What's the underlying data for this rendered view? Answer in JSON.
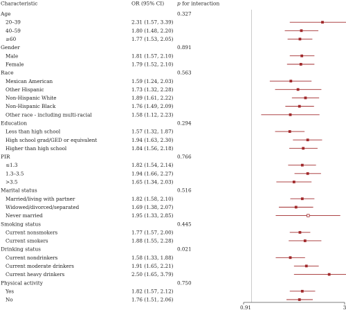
{
  "header": {
    "characteristic": "Characteristic",
    "or_ci": "OR (95% CI)",
    "p_prefix": "p",
    "p_suffix": " for interaction"
  },
  "chart_data": {
    "type": "forest",
    "xlim": [
      0.91,
      3
    ],
    "x_ticks": [
      "0.91",
      "3"
    ],
    "reference_line": 1,
    "marker_color": "#a0282a",
    "line_color": "#a0282a",
    "rows": [
      {
        "kind": "group",
        "label": "Age",
        "p": "0.327"
      },
      {
        "kind": "item",
        "label": "20–39",
        "ci_text": "2.31 (1.57, 3.39)",
        "or": 2.31,
        "lo": 1.57,
        "hi": 3.39
      },
      {
        "kind": "item",
        "label": "40–59",
        "ci_text": "1.80 (1.48, 2.20)",
        "or": 1.8,
        "lo": 1.48,
        "hi": 2.2
      },
      {
        "kind": "item",
        "label": "≥60",
        "ci_text": "1.77 (1.53, 2.05)",
        "or": 1.77,
        "lo": 1.53,
        "hi": 2.05
      },
      {
        "kind": "group",
        "label": "Gender",
        "p": "0.891"
      },
      {
        "kind": "item",
        "label": "Male",
        "ci_text": "1.81 (1.57, 2.10)",
        "or": 1.81,
        "lo": 1.57,
        "hi": 2.1
      },
      {
        "kind": "item",
        "label": "Female",
        "ci_text": "1.79 (1.52, 2.10)",
        "or": 1.79,
        "lo": 1.52,
        "hi": 2.1
      },
      {
        "kind": "group",
        "label": "Race",
        "p": "0.563"
      },
      {
        "kind": "item",
        "label": "Mexican American",
        "ci_text": "1.59 (1.24, 2.03)",
        "or": 1.59,
        "lo": 1.24,
        "hi": 2.03
      },
      {
        "kind": "item",
        "label": "Other Hispanic",
        "ci_text": "1.73 (1.32, 2.28)",
        "or": 1.73,
        "lo": 1.32,
        "hi": 2.28
      },
      {
        "kind": "item",
        "label": "Non-Hispanic White",
        "ci_text": "1.89 (1.61, 2.22)",
        "or": 1.89,
        "lo": 1.61,
        "hi": 2.22
      },
      {
        "kind": "item",
        "label": "Non-Hispanic Black",
        "ci_text": "1.76 (1.49, 2.09)",
        "or": 1.76,
        "lo": 1.49,
        "hi": 2.09
      },
      {
        "kind": "item",
        "label": "Other race - including multi-racial",
        "ci_text": "1.58 (1.12, 2.23)",
        "or": 1.58,
        "lo": 1.12,
        "hi": 2.23
      },
      {
        "kind": "group",
        "label": "Education",
        "p": "0.294"
      },
      {
        "kind": "item",
        "label": "Less than high school",
        "ci_text": "1.57 (1.32, 1.87)",
        "or": 1.57,
        "lo": 1.32,
        "hi": 1.87
      },
      {
        "kind": "item",
        "label": "High school grad/GED or equivalent",
        "ci_text": "1.94 (1.63, 2.30)",
        "or": 1.94,
        "lo": 1.63,
        "hi": 2.3
      },
      {
        "kind": "item",
        "label": "Higher than high school",
        "ci_text": "1.84 (1.56, 2.18)",
        "or": 1.84,
        "lo": 1.56,
        "hi": 2.18
      },
      {
        "kind": "group",
        "label": "PIR",
        "p": "0.766"
      },
      {
        "kind": "item",
        "label": "≤1.3",
        "ci_text": "1.82 (1.54, 2.14)",
        "or": 1.82,
        "lo": 1.54,
        "hi": 2.14
      },
      {
        "kind": "item",
        "label": "1.3–3.5",
        "ci_text": "1.94 (1.66, 2.27)",
        "or": 1.94,
        "lo": 1.66,
        "hi": 2.27
      },
      {
        "kind": "item",
        "label": ">3.5",
        "ci_text": "1.65 (1.34, 2.03)",
        "or": 1.65,
        "lo": 1.34,
        "hi": 2.03
      },
      {
        "kind": "group",
        "label": "Marital status",
        "p": "0.516"
      },
      {
        "kind": "item",
        "label": "Married/living with partner",
        "ci_text": "1.82 (1.58, 2.10)",
        "or": 1.82,
        "lo": 1.58,
        "hi": 2.1
      },
      {
        "kind": "item",
        "label": "Widowed/divorced/separated",
        "ci_text": "1.69 (1.38, 2.07)",
        "or": 1.69,
        "lo": 1.38,
        "hi": 2.07
      },
      {
        "kind": "item",
        "label": "Never married",
        "ci_text": "1.95 (1.33, 2.85)",
        "or": 1.95,
        "lo": 1.33,
        "hi": 2.85,
        "open_marker": true
      },
      {
        "kind": "group",
        "label": "Smoking status",
        "p": "0.445"
      },
      {
        "kind": "item",
        "label": "Current nonsmokers",
        "ci_text": "1.77 (1.57, 2.00)",
        "or": 1.77,
        "lo": 1.57,
        "hi": 2.0
      },
      {
        "kind": "item",
        "label": "Current smokers",
        "ci_text": "1.88 (1.55, 2.28)",
        "or": 1.88,
        "lo": 1.55,
        "hi": 2.28
      },
      {
        "kind": "group",
        "label": "Drinking status",
        "p": "0.021"
      },
      {
        "kind": "item",
        "label": "Current nondrinkers",
        "ci_text": "1.58 (1.33, 1.88)",
        "or": 1.58,
        "lo": 1.33,
        "hi": 1.88
      },
      {
        "kind": "item",
        "label": "Current moderate drinkers",
        "ci_text": "1.91 (1.65, 2.21)",
        "or": 1.91,
        "lo": 1.65,
        "hi": 2.21
      },
      {
        "kind": "item",
        "label": "Current heavy drinkers",
        "ci_text": "2.50 (1.65, 3.79)",
        "or": 2.5,
        "lo": 1.65,
        "hi": 3.79
      },
      {
        "kind": "group",
        "label": "Physical activity",
        "p": "0.750"
      },
      {
        "kind": "item",
        "label": "Yes",
        "ci_text": "1.82 (1.57, 2.12)",
        "or": 1.82,
        "lo": 1.57,
        "hi": 2.12
      },
      {
        "kind": "item",
        "label": "No",
        "ci_text": "1.76 (1.51, 2.06)",
        "or": 1.76,
        "lo": 1.51,
        "hi": 2.06
      }
    ]
  }
}
